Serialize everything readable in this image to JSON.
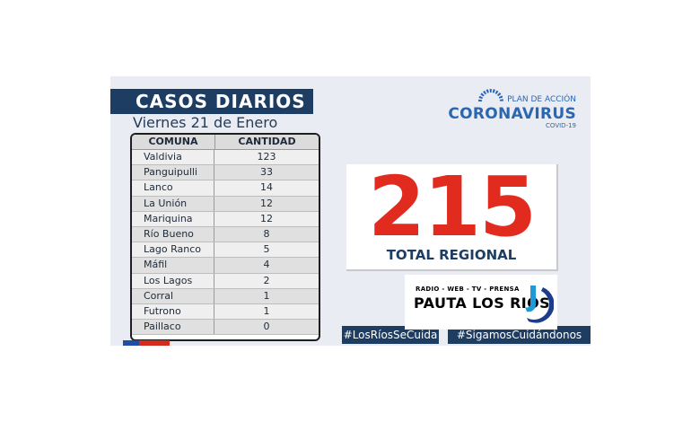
{
  "header": {
    "title": "CASOS DIARIOS",
    "date": "Viernes 21 de Enero"
  },
  "logo": {
    "plan": "PLAN DE ACCIÓN",
    "name": "CORONAVIRUS",
    "sub": "COVID-19"
  },
  "table": {
    "headers": [
      "COMUNA",
      "CANTIDAD"
    ],
    "rows": [
      {
        "comuna": "Valdivia",
        "cantidad": "123"
      },
      {
        "comuna": "Panguipulli",
        "cantidad": "33"
      },
      {
        "comuna": "Lanco",
        "cantidad": "14"
      },
      {
        "comuna": "La Unión",
        "cantidad": "12"
      },
      {
        "comuna": "Mariquina",
        "cantidad": "12"
      },
      {
        "comuna": "Río Bueno",
        "cantidad": "8"
      },
      {
        "comuna": "Lago Ranco",
        "cantidad": "5"
      },
      {
        "comuna": "Máfil",
        "cantidad": "4"
      },
      {
        "comuna": "Los Lagos",
        "cantidad": "2"
      },
      {
        "comuna": "Corral",
        "cantidad": "1"
      },
      {
        "comuna": "Futrono",
        "cantidad": "1"
      },
      {
        "comuna": "Paillaco",
        "cantidad": "0"
      }
    ]
  },
  "total": {
    "value": "215",
    "label": "TOTAL REGIONAL"
  },
  "hashtags": {
    "left": "#LosRíosSeCuida",
    "right": "#SigamosCuidándonos"
  },
  "watermark": {
    "tagline": "RADIO - WEB - TV - PRENSA",
    "name": "PAUTA LOS RIOS"
  },
  "colors": {
    "navy": "#1d3d63",
    "red": "#e12b1e",
    "blue": "#2a67b1",
    "background": "#eaecf4"
  }
}
